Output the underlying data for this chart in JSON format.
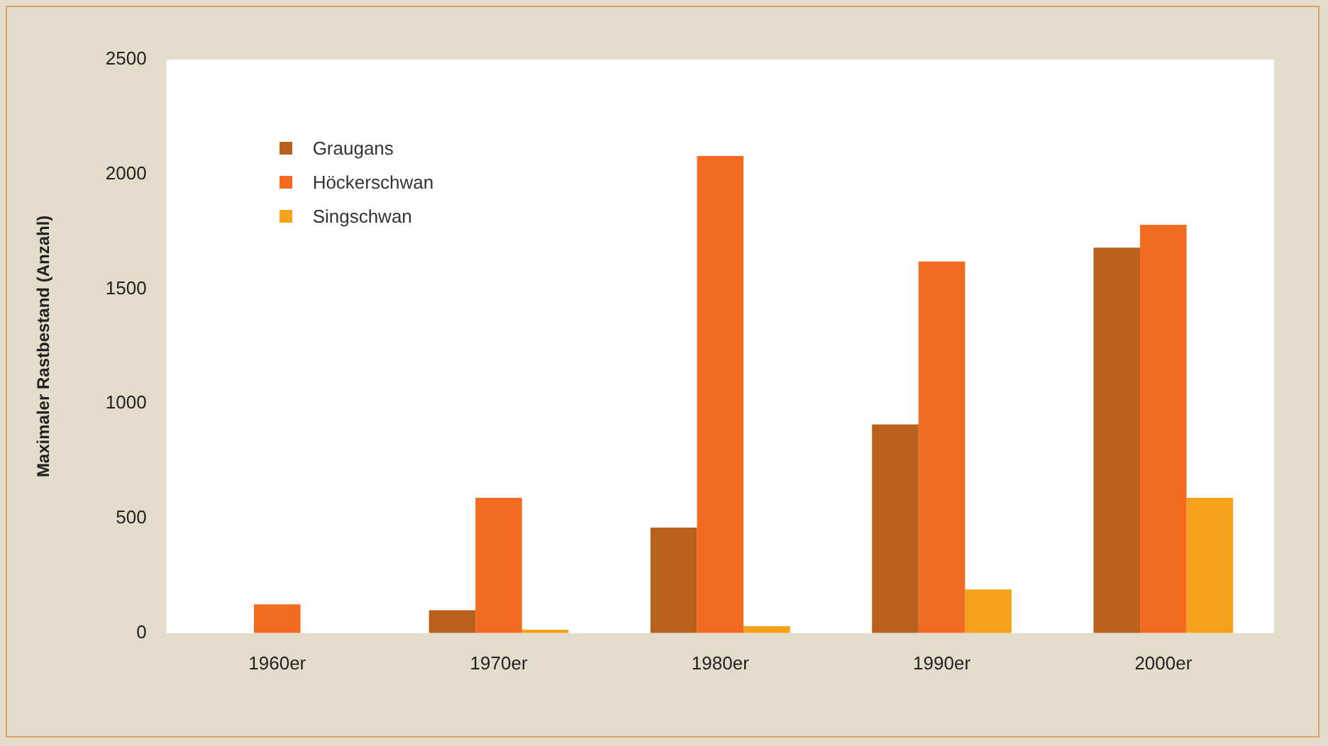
{
  "chart_data": {
    "type": "bar",
    "ylabel": "Maximaler Rastbestand (Anzahl)",
    "categories": [
      "1960er",
      "1970er",
      "1980er",
      "1990er",
      "2000er"
    ],
    "series": [
      {
        "name": "Graugans",
        "color": "#b9601c",
        "values": [
          0,
          100,
          460,
          910,
          1680
        ]
      },
      {
        "name": "Höckerschwan",
        "color": "#f26b21",
        "values": [
          125,
          590,
          2080,
          1620,
          1780
        ]
      },
      {
        "name": "Singschwan",
        "color": "#f4a21c",
        "values": [
          0,
          15,
          30,
          190,
          590
        ]
      }
    ],
    "ylim": [
      0,
      2500
    ],
    "yticks": [
      0,
      500,
      1000,
      1500,
      2000,
      2500
    ],
    "grid": false,
    "legend": "top left"
  }
}
